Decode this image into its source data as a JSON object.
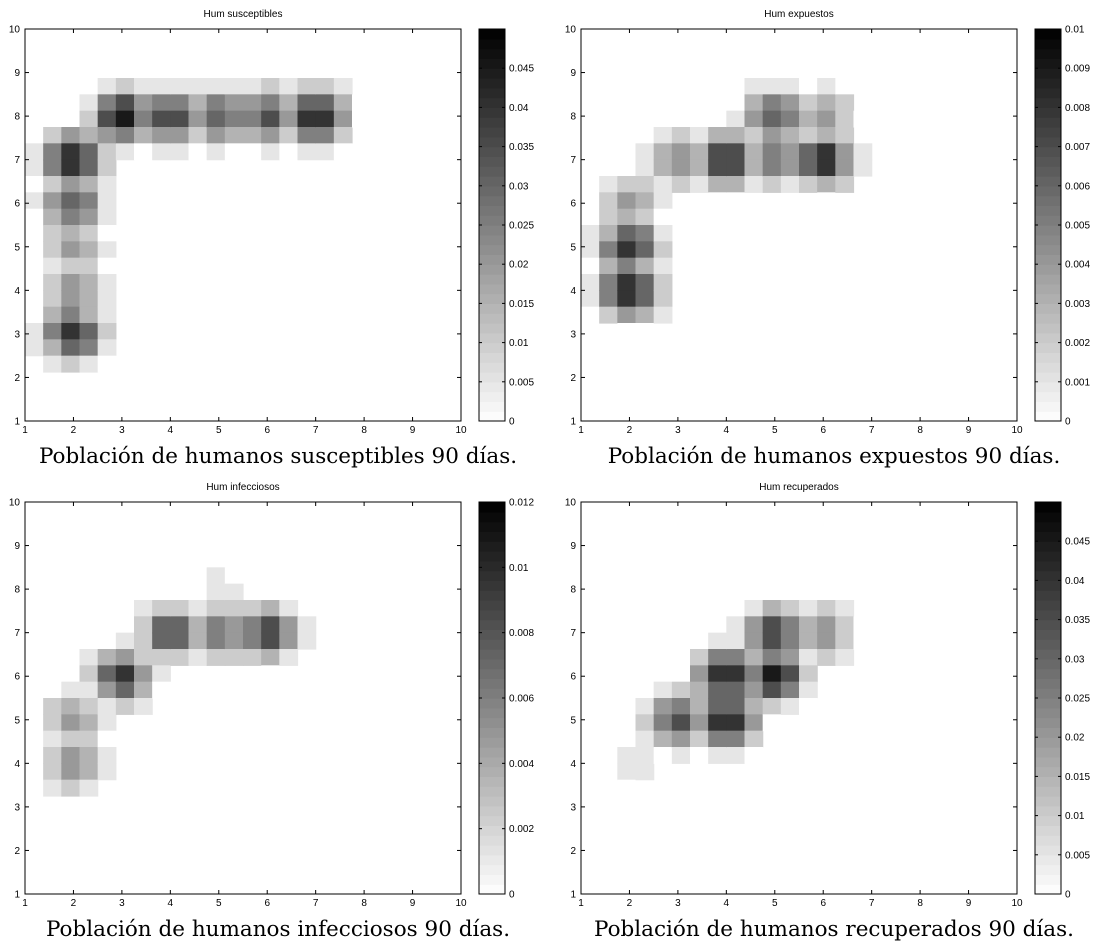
{
  "colors": {
    "axis": "#000000",
    "background": "#ffffff",
    "colormap": "gray-reversed"
  },
  "chart_data": [
    {
      "type": "heatmap",
      "subtype": "filled-contour",
      "title": "Hum susceptibles",
      "caption": "Población de humanos susceptibles 90 días.",
      "xlim": [
        1,
        10
      ],
      "ylim": [
        1,
        10
      ],
      "xticks": [
        1,
        2,
        3,
        4,
        5,
        6,
        7,
        8,
        9,
        10
      ],
      "yticks": [
        1,
        2,
        3,
        4,
        5,
        6,
        7,
        8,
        9,
        10
      ],
      "grid": false,
      "colorbar": {
        "min": 0,
        "max": 0.05,
        "ticks": [
          "0",
          "0.005",
          "0.01",
          "0.015",
          "0.02",
          "0.025",
          "0.03",
          "0.035",
          "0.04",
          "0.045"
        ],
        "tick_values": [
          0,
          0.005,
          0.01,
          0.015,
          0.02,
          0.025,
          0.03,
          0.035,
          0.04,
          0.045
        ]
      },
      "points": [
        {
          "x": 2,
          "y": 3,
          "value": 0.045
        },
        {
          "x": 2,
          "y": 4,
          "value": 0.025
        },
        {
          "x": 2,
          "y": 5,
          "value": 0.025
        },
        {
          "x": 2,
          "y": 6,
          "value": 0.035
        },
        {
          "x": 2,
          "y": 7,
          "value": 0.05
        },
        {
          "x": 3,
          "y": 8,
          "value": 0.05
        },
        {
          "x": 4,
          "y": 8,
          "value": 0.04
        },
        {
          "x": 5,
          "y": 8,
          "value": 0.035
        },
        {
          "x": 6,
          "y": 8,
          "value": 0.04
        },
        {
          "x": 7,
          "y": 8,
          "value": 0.05
        }
      ]
    },
    {
      "type": "heatmap",
      "subtype": "filled-contour",
      "title": "Hum expuestos",
      "caption": "Población de humanos expuestos 90 días.",
      "xlim": [
        1,
        10
      ],
      "ylim": [
        1,
        10
      ],
      "xticks": [
        1,
        2,
        3,
        4,
        5,
        6,
        7,
        8,
        9,
        10
      ],
      "yticks": [
        1,
        2,
        3,
        4,
        5,
        6,
        7,
        8,
        9,
        10
      ],
      "grid": false,
      "colorbar": {
        "min": 0,
        "max": 0.01,
        "ticks": [
          "0",
          "0.001",
          "0.002",
          "0.003",
          "0.004",
          "0.005",
          "0.006",
          "0.007",
          "0.008",
          "0.009",
          "0.01"
        ],
        "tick_values": [
          0,
          0.001,
          0.002,
          0.003,
          0.004,
          0.005,
          0.006,
          0.007,
          0.008,
          0.009,
          0.01
        ]
      },
      "points": [
        {
          "x": 2,
          "y": 4,
          "value": 0.01
        },
        {
          "x": 2,
          "y": 5,
          "value": 0.009
        },
        {
          "x": 2,
          "y": 6,
          "value": 0.005
        },
        {
          "x": 3,
          "y": 7,
          "value": 0.0055
        },
        {
          "x": 4,
          "y": 7,
          "value": 0.009
        },
        {
          "x": 5,
          "y": 8,
          "value": 0.007
        },
        {
          "x": 5,
          "y": 7,
          "value": 0.006
        },
        {
          "x": 6,
          "y": 7,
          "value": 0.009
        },
        {
          "x": 6,
          "y": 8,
          "value": 0.005
        }
      ]
    },
    {
      "type": "heatmap",
      "subtype": "filled-contour",
      "title": "Hum infecciosos",
      "caption": "Población de humanos infecciosos 90 días.",
      "xlim": [
        1,
        10
      ],
      "ylim": [
        1,
        10
      ],
      "xticks": [
        1,
        2,
        3,
        4,
        5,
        6,
        7,
        8,
        9,
        10
      ],
      "yticks": [
        1,
        2,
        3,
        4,
        5,
        6,
        7,
        8,
        9,
        10
      ],
      "grid": false,
      "colorbar": {
        "min": 0,
        "max": 0.012,
        "ticks": [
          "0",
          "0.002",
          "0.004",
          "0.006",
          "0.008",
          "0.01",
          "0.012"
        ],
        "tick_values": [
          0,
          0.002,
          0.004,
          0.006,
          0.008,
          0.01,
          0.012
        ]
      },
      "points": [
        {
          "x": 2,
          "y": 4,
          "value": 0.006
        },
        {
          "x": 2,
          "y": 5,
          "value": 0.0055
        },
        {
          "x": 3,
          "y": 6,
          "value": 0.01
        },
        {
          "x": 4,
          "y": 7,
          "value": 0.0095
        },
        {
          "x": 5,
          "y": 7,
          "value": 0.008
        },
        {
          "x": 6,
          "y": 7,
          "value": 0.0095
        },
        {
          "x": 5,
          "y": 8,
          "value": 0.002
        }
      ]
    },
    {
      "type": "heatmap",
      "subtype": "filled-contour",
      "title": "Hum recuperados",
      "caption": "Población de humanos recuperados 90 días.",
      "xlim": [
        1,
        10
      ],
      "ylim": [
        1,
        10
      ],
      "xticks": [
        1,
        2,
        3,
        4,
        5,
        6,
        7,
        8,
        9,
        10
      ],
      "yticks": [
        1,
        2,
        3,
        4,
        5,
        6,
        7,
        8,
        9,
        10
      ],
      "grid": false,
      "colorbar": {
        "min": 0,
        "max": 0.05,
        "ticks": [
          "0",
          "0.005",
          "0.01",
          "0.015",
          "0.02",
          "0.025",
          "0.03",
          "0.035",
          "0.04",
          "0.045"
        ],
        "tick_values": [
          0,
          0.005,
          0.01,
          0.015,
          0.02,
          0.025,
          0.03,
          0.035,
          0.04,
          0.045
        ]
      },
      "points": [
        {
          "x": 2,
          "y": 4,
          "value": 0.008
        },
        {
          "x": 3,
          "y": 5,
          "value": 0.04
        },
        {
          "x": 4,
          "y": 5,
          "value": 0.05
        },
        {
          "x": 4,
          "y": 6,
          "value": 0.05
        },
        {
          "x": 5,
          "y": 6,
          "value": 0.05
        },
        {
          "x": 5,
          "y": 7,
          "value": 0.04
        },
        {
          "x": 6,
          "y": 7,
          "value": 0.025
        }
      ]
    }
  ]
}
